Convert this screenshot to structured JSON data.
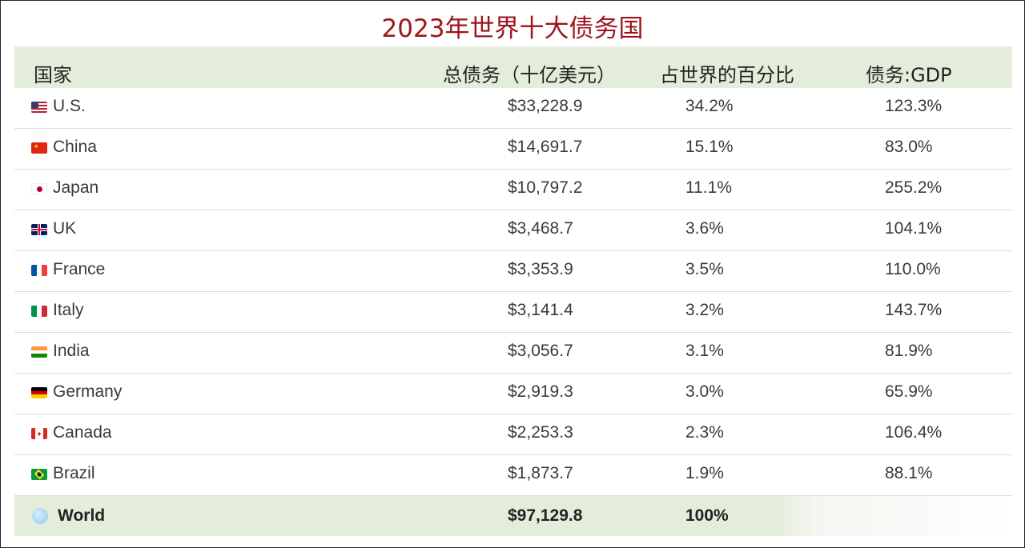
{
  "title": "2023年世界十大债务国",
  "columns": {
    "country": "国家",
    "total_debt": "总债务（十亿美元）",
    "share": "占世界的百分比",
    "ratio": "债务:GDP"
  },
  "rows": [
    {
      "country": "U.S.",
      "flag": "us-flag-icon",
      "debt": "$33,228.9",
      "share": "34.2%",
      "ratio": "123.3%"
    },
    {
      "country": "China",
      "flag": "china-flag-icon",
      "debt": "$14,691.7",
      "share": "15.1%",
      "ratio": "83.0%"
    },
    {
      "country": "Japan",
      "flag": "japan-flag-icon",
      "debt": "$10,797.2",
      "share": "11.1%",
      "ratio": "255.2%"
    },
    {
      "country": "UK",
      "flag": "uk-flag-icon",
      "debt": "$3,468.7",
      "share": "3.6%",
      "ratio": "104.1%"
    },
    {
      "country": "France",
      "flag": "france-flag-icon",
      "debt": "$3,353.9",
      "share": "3.5%",
      "ratio": "110.0%"
    },
    {
      "country": "Italy",
      "flag": "italy-flag-icon",
      "debt": "$3,141.4",
      "share": "3.2%",
      "ratio": "143.7%"
    },
    {
      "country": "India",
      "flag": "india-flag-icon",
      "debt": "$3,056.7",
      "share": "3.1%",
      "ratio": "81.9%"
    },
    {
      "country": "Germany",
      "flag": "germany-flag-icon",
      "debt": "$2,919.3",
      "share": "3.0%",
      "ratio": "65.9%"
    },
    {
      "country": "Canada",
      "flag": "canada-flag-icon",
      "debt": "$2,253.3",
      "share": "2.3%",
      "ratio": "106.4%"
    },
    {
      "country": "Brazil",
      "flag": "brazil-flag-icon",
      "debt": "$1,873.7",
      "share": "1.9%",
      "ratio": "88.1%"
    }
  ],
  "total": {
    "country": "World",
    "icon": "globe-icon",
    "debt": "$97,129.8",
    "share": "100%"
  },
  "colors": {
    "title": "#a0141c",
    "header_bg": "#e3edd9"
  }
}
